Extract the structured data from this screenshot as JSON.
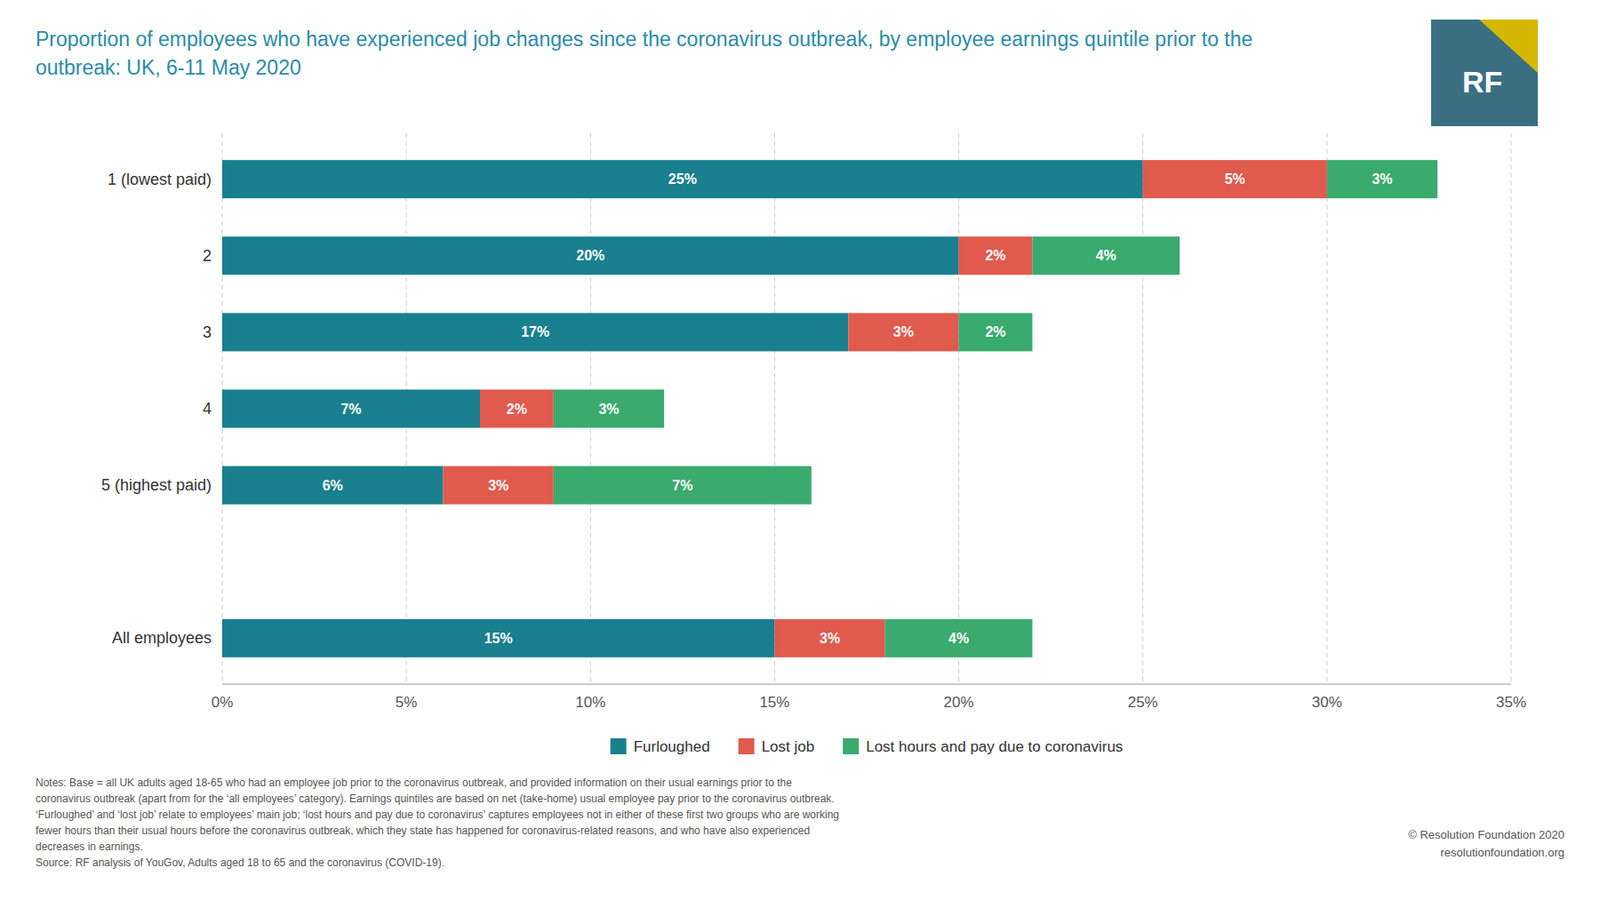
{
  "chart_data": {
    "type": "bar",
    "orientation": "horizontal",
    "stacked": true,
    "data_labels": true,
    "grid": true,
    "legend": "bottom",
    "title": "Proportion of employees who have experienced job changes since the coronavirus outbreak, by employee earnings quintile prior to the outbreak: UK, 6-11 May 2020",
    "categories": [
      "1 (lowest paid)",
      "2",
      "3",
      "4",
      "5 (highest paid)",
      null,
      "All employees"
    ],
    "series": [
      {
        "name": "Furloughed",
        "color": "#1a7f8e",
        "values": [
          25,
          20,
          17,
          7,
          6,
          0,
          15
        ],
        "value_labels": [
          "25%",
          "20%",
          "17%",
          "7%",
          "6%",
          null,
          "15%"
        ]
      },
      {
        "name": "Lost job",
        "color": "#e05a4e",
        "values": [
          5,
          2,
          3,
          2,
          3,
          0,
          3
        ],
        "value_labels": [
          "5%",
          "2%",
          "3%",
          "2%",
          "3%",
          null,
          "3%"
        ]
      },
      {
        "name": "Lost hours and pay due to coronavirus",
        "color": "#3aaa6e",
        "values": [
          3,
          4,
          2,
          3,
          7,
          0,
          4
        ],
        "value_labels": [
          "3%",
          "4%",
          "2%",
          "3%",
          "7%",
          null,
          "4%"
        ]
      }
    ],
    "xlim": [
      0,
      35
    ],
    "xticks": [
      {
        "value": 0,
        "label": "0%"
      },
      {
        "value": 5,
        "label": "5%"
      },
      {
        "value": 10,
        "label": "10%"
      },
      {
        "value": 15,
        "label": "15%"
      },
      {
        "value": 20,
        "label": "20%"
      },
      {
        "value": 25,
        "label": "25%"
      },
      {
        "value": 30,
        "label": "30%"
      },
      {
        "value": 35,
        "label": "35%"
      }
    ],
    "annotations": [
      "Notes: Base = all UK adults aged 18-65 who had an employee job prior to the coronavirus outbreak, and provided information on their usual earnings prior to the",
      "coronavirus outbreak (apart from for the ‘all employees’ category). Earnings quintiles are based on net (take-home) usual employee pay prior to the coronavirus outbreak.",
      "‘Furloughed’ and ‘lost job’ relate to employees’ main job; ‘lost hours and pay due to coronavirus’ captures employees not in either of these first two groups who are working",
      "fewer hours than their usual hours before the coronavirus outbreak, which they state has happened for coronavirus-related reasons, and who have also experienced",
      "decreases in earnings.",
      "Source: RF analysis of YouGov, Adults aged 18 to 65 and the coronavirus (COVID-19).",
      "© Resolution Foundation 2020",
      "resolutionfoundation.org",
      "RF"
    ]
  }
}
